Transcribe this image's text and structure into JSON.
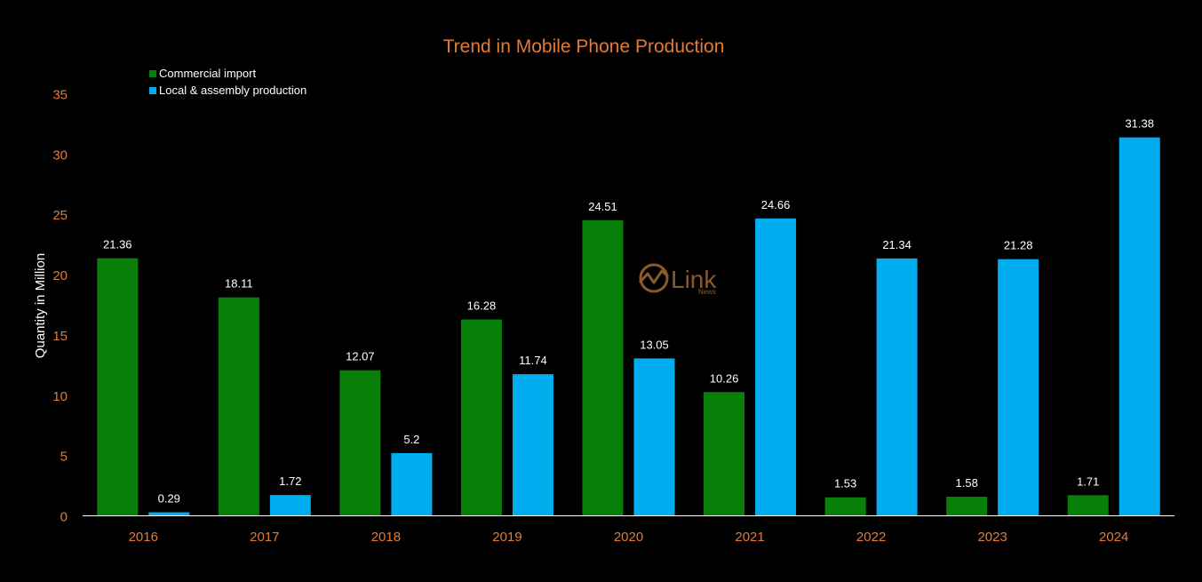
{
  "colors": {
    "background": "#000000",
    "title": "#E07B39",
    "axis_ticks": "#E07B39",
    "axis_label": "#FFFFFF",
    "data_label": "#FFFFFF",
    "commercial_import": "#087F08",
    "local_assembly": "#00AEEF",
    "baseline": "#FFFFFF",
    "watermark": "#8A5A2B"
  },
  "watermark": {
    "text": "Link",
    "subtext": "News",
    "icon": "chart-circle-logo-icon"
  },
  "chart_data": {
    "type": "bar",
    "title": "Trend in Mobile Phone Production",
    "xlabel": "",
    "ylabel": "Quantity in Million",
    "ylim": [
      0,
      35
    ],
    "yticks": [
      0,
      5,
      10,
      15,
      20,
      25,
      30,
      35
    ],
    "grid": false,
    "legend_position": "top-left",
    "categories": [
      "2016",
      "2017",
      "2018",
      "2019",
      "2020",
      "2021",
      "2022",
      "2023",
      "2024"
    ],
    "series": [
      {
        "name": "Commercial import",
        "color": "#087F08",
        "values": [
          21.36,
          18.11,
          12.07,
          16.28,
          24.51,
          10.26,
          1.53,
          1.58,
          1.71
        ]
      },
      {
        "name": "Local & assembly production",
        "color": "#00AEEF",
        "values": [
          0.29,
          1.72,
          5.2,
          11.74,
          13.05,
          24.66,
          21.34,
          21.28,
          31.38
        ]
      }
    ]
  }
}
